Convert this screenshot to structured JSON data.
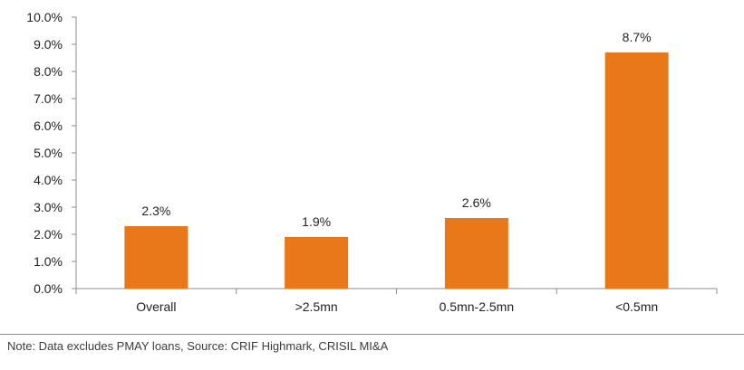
{
  "chart_data": {
    "type": "bar",
    "categories": [
      "Overall",
      ">2.5mn",
      "0.5mn-2.5mn",
      "<0.5mn"
    ],
    "values": [
      2.3,
      1.9,
      2.6,
      8.7
    ],
    "value_labels": [
      "2.3%",
      "1.9%",
      "2.6%",
      "8.7%"
    ],
    "ylim": [
      0,
      10
    ],
    "ytick_values": [
      0,
      1,
      2,
      3,
      4,
      5,
      6,
      7,
      8,
      9,
      10
    ],
    "yticks": [
      "0.0%",
      "1.0%",
      "2.0%",
      "3.0%",
      "4.0%",
      "5.0%",
      "6.0%",
      "7.0%",
      "8.0%",
      "9.0%",
      "10.0%"
    ],
    "title": "",
    "xlabel": "",
    "ylabel": "",
    "bar_color": "#E8781A",
    "grid": false,
    "legend": "none"
  },
  "note": "Note: Data excludes PMAY loans, Source: CRIF Highmark, CRISIL MI&A"
}
